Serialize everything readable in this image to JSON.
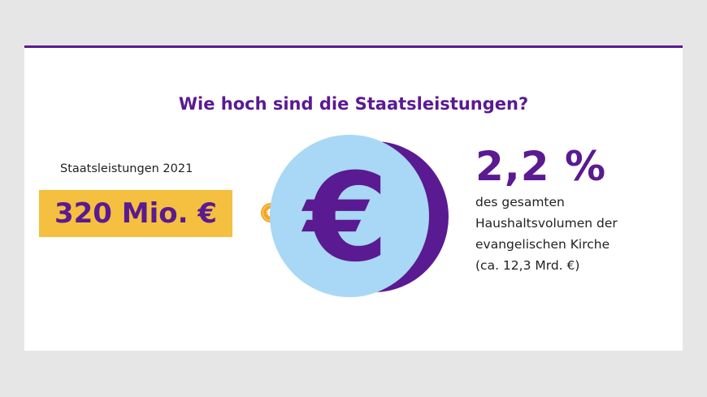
{
  "title": "Wie hoch sind die Staatsleistungen?",
  "left": {
    "label": "Staatsleistungen 2021",
    "amount": "320 Mio. €"
  },
  "coin_symbol": "€",
  "right": {
    "percent": "2,2 %",
    "lines": [
      "des gesamten",
      "Haushaltsvolumen der",
      "evangelischen Kirche",
      "(ca. 12,3 Mrd. €)"
    ]
  },
  "colors": {
    "purple": "#5a1a91",
    "yellow": "#f5c040",
    "light_blue": "#a8d8f5",
    "coin_orange": "#f5a623"
  }
}
